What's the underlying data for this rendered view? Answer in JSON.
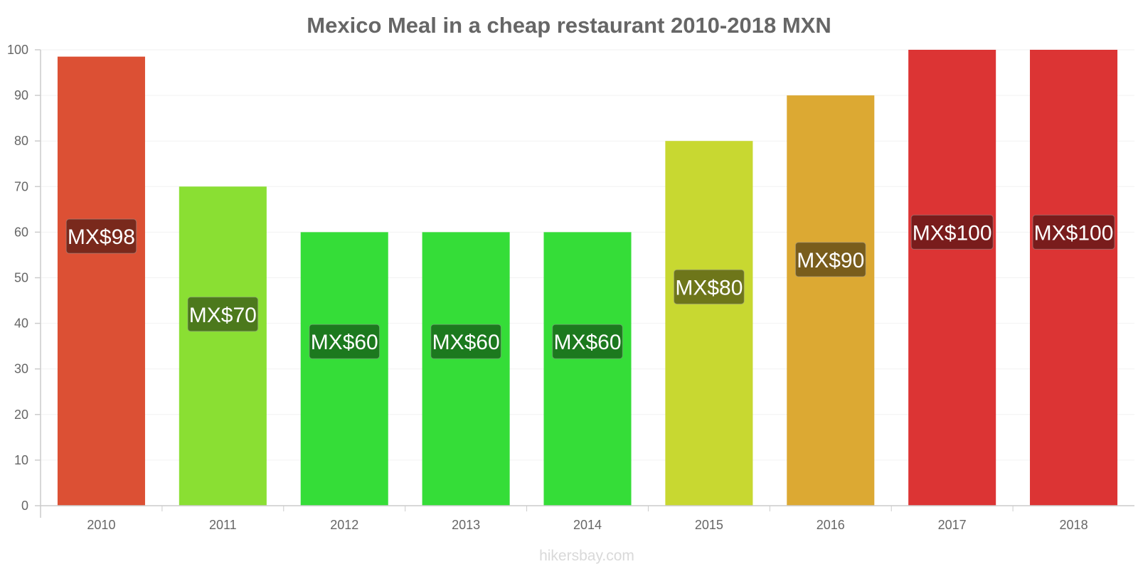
{
  "chart_data": {
    "type": "bar",
    "title": "Mexico Meal in a cheap restaurant 2010-2018 MXN",
    "xlabel": "",
    "ylabel": "",
    "ylim": [
      0,
      100
    ],
    "yticks": [
      "0",
      "10",
      "20",
      "30",
      "40",
      "50",
      "60",
      "70",
      "80",
      "90",
      "100"
    ],
    "grid": true,
    "categories": [
      "2010",
      "2011",
      "2012",
      "2013",
      "2014",
      "2015",
      "2016",
      "2017",
      "2018"
    ],
    "values": [
      98.5,
      70,
      60,
      60,
      60,
      80,
      90,
      100,
      100
    ],
    "data_labels": [
      "MX$98",
      "MX$70",
      "MX$60",
      "MX$60",
      "MX$60",
      "MX$80",
      "MX$90",
      "MX$100",
      "MX$100"
    ],
    "bar_colors": [
      "#dc5034",
      "#8adf33",
      "#35dd38",
      "#35dd38",
      "#35dd38",
      "#c8d831",
      "#dca933",
      "#dc3434",
      "#dc3434"
    ],
    "label_bg_colors": [
      "#6e2519",
      "#456e19",
      "#1a6e1c",
      "#1a6e1c",
      "#1a6e1c",
      "#646c18",
      "#6e5419",
      "#6e1a1a",
      "#6e1a1a"
    ]
  },
  "footer": {
    "watermark": "hikersbay.com"
  }
}
